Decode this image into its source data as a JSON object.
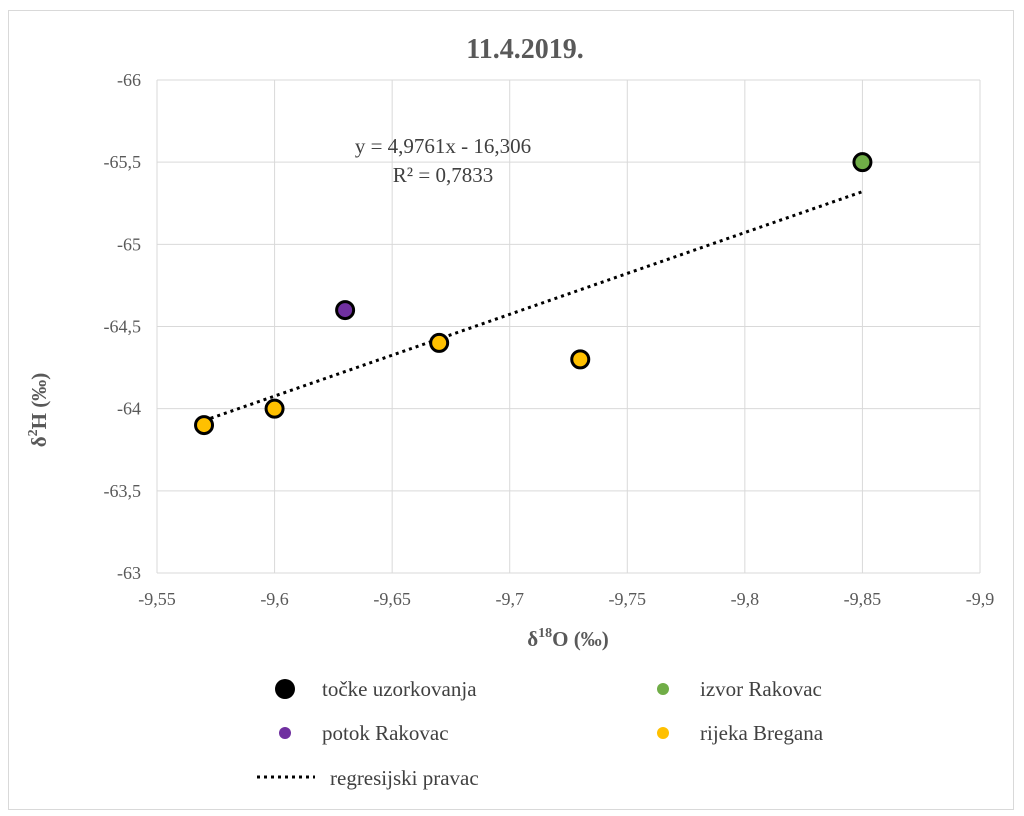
{
  "chart_data": {
    "type": "scatter",
    "title": "11.4.2019.",
    "xlabel_main": "δ",
    "xlabel_sup": "18",
    "xlabel_rest": "O (‰)",
    "ylabel_main": "δ",
    "ylabel_sup": "2",
    "ylabel_rest": "H (‰)",
    "xlim": [
      -9.55,
      -9.9
    ],
    "ylim": [
      -63,
      -66
    ],
    "x_ticks": [
      -9.55,
      -9.6,
      -9.65,
      -9.7,
      -9.75,
      -9.8,
      -9.85,
      -9.9
    ],
    "x_tick_labels": [
      "-9,55",
      "-9,6",
      "-9,65",
      "-9,7",
      "-9,75",
      "-9,8",
      "-9,85",
      "-9,9"
    ],
    "y_ticks": [
      -63,
      -63.5,
      -64,
      -64.5,
      -65,
      -65.5,
      -66
    ],
    "y_tick_labels": [
      "-63",
      "-63,5",
      "-64",
      "-64,5",
      "-65",
      "-65,5",
      "-66"
    ],
    "grid": true,
    "series": [
      {
        "name": "izvor Rakovac",
        "color": "#70ad47",
        "points": [
          {
            "x": -9.85,
            "y": -65.5
          }
        ]
      },
      {
        "name": "potok Rakovac",
        "color": "#7030a0",
        "points": [
          {
            "x": -9.63,
            "y": -64.6
          }
        ]
      },
      {
        "name": "rijeka Bregana",
        "color": "#ffc000",
        "points": [
          {
            "x": -9.57,
            "y": -63.9
          },
          {
            "x": -9.6,
            "y": -64.0
          },
          {
            "x": -9.67,
            "y": -64.4
          },
          {
            "x": -9.73,
            "y": -64.3
          }
        ]
      }
    ],
    "regression": {
      "slope": 4.9761,
      "intercept": -16.306,
      "x_range": [
        -9.57,
        -9.85
      ],
      "equation": "y = 4,9761x  - 16,306",
      "r2": "R² = 0,7833"
    },
    "legend": {
      "placement": "bottom",
      "items": [
        {
          "label": "točke uzorkovanja",
          "kind": "marker",
          "color": "#000000"
        },
        {
          "label": "izvor Rakovac",
          "kind": "marker",
          "color": "#70ad47"
        },
        {
          "label": "potok Rakovac",
          "kind": "marker",
          "color": "#7030a0"
        },
        {
          "label": "rijeka Bregana",
          "kind": "marker",
          "color": "#ffc000"
        },
        {
          "label": "regresijski pravac",
          "kind": "line",
          "color": "#000000"
        }
      ]
    }
  }
}
